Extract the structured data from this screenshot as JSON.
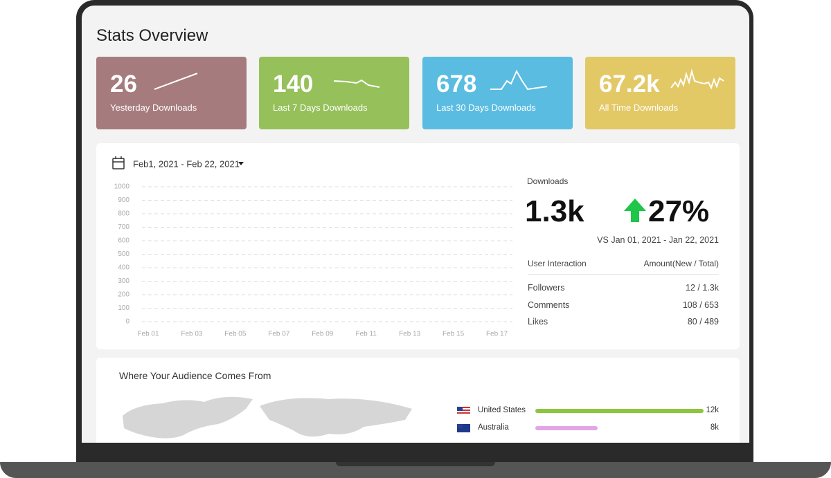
{
  "header": {
    "title": "Stats Overview"
  },
  "cards": [
    {
      "value": "26",
      "label": "Yesterday Downloads",
      "color": "#a67b7d"
    },
    {
      "value": "140",
      "label": "Last 7 Days Downloads",
      "color": "#95c05a"
    },
    {
      "value": "678",
      "label": "Last 30 Days Downloads",
      "color": "#5bbce2"
    },
    {
      "value": "67.2k",
      "label": "All Time Downloads",
      "color": "#e3c866"
    }
  ],
  "chart": {
    "date_range": "Feb1, 2021 - Feb 22, 2021",
    "ylim": [
      0,
      1000
    ],
    "yticks": [
      0,
      100,
      200,
      300,
      400,
      500,
      600,
      700,
      800,
      900,
      1000
    ],
    "categories": [
      "Feb 01",
      "Feb 03",
      "Feb 05",
      "Feb 07",
      "Feb 09",
      "Feb 11",
      "Feb 13",
      "Feb 15",
      "Feb 17"
    ]
  },
  "downloads": {
    "label": "Downloads",
    "value": "1.3k",
    "change": "27%",
    "comparison": "VS Jan 01, 2021 - Jan 22, 2021"
  },
  "interaction": {
    "header": [
      "User Interaction",
      "Amount(New / Total)"
    ],
    "rows": [
      [
        "Followers",
        "12 / 1.3k"
      ],
      [
        "Comments",
        "108 / 653"
      ],
      [
        "Likes",
        "80 / 489"
      ]
    ]
  },
  "audience": {
    "title": "Where Your Audience Comes From",
    "rows": [
      {
        "country": "United States",
        "value": "12k"
      },
      {
        "country": "Australia",
        "value": "8k"
      }
    ]
  }
}
